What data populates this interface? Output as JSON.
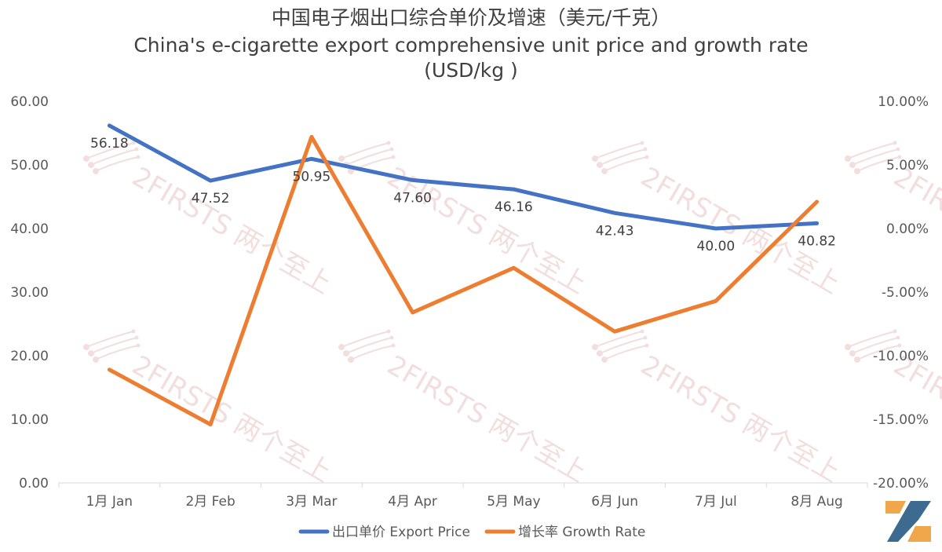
{
  "chart_data": {
    "type": "line",
    "title_lines": [
      "中国电子烟出口综合单价及增速（美元/千克）",
      "China's e-cigarette export comprehensive unit price and growth rate",
      "(USD/kg )"
    ],
    "categories": [
      "1月 Jan",
      "2月 Feb",
      "3月 Mar",
      "4月 Apr",
      "5月 May",
      "6月 Jun",
      "7月 Jul",
      "8月 Aug"
    ],
    "series": [
      {
        "name": "出口单价 Export Price",
        "axis": "left",
        "color": "#4472C4",
        "values": [
          56.18,
          47.52,
          50.95,
          47.6,
          46.16,
          42.43,
          40.0,
          40.82
        ],
        "data_labels": [
          "56.18",
          "47.52",
          "50.95",
          "47.60",
          "46.16",
          "42.43",
          "40.00",
          "40.82"
        ]
      },
      {
        "name": "增长率 Growth Rate",
        "axis": "right",
        "color": "#ED7D31",
        "values": [
          -11.1,
          -15.4,
          7.2,
          -6.6,
          -3.1,
          -8.1,
          -5.7,
          2.1
        ]
      }
    ],
    "y_left": {
      "min": 0,
      "max": 60,
      "step": 10,
      "tick_labels": [
        "0.00",
        "10.00",
        "20.00",
        "30.00",
        "40.00",
        "50.00",
        "60.00"
      ]
    },
    "y_right": {
      "min": -20,
      "max": 10,
      "step": 5,
      "tick_labels": [
        "-20.00%",
        "-15.00%",
        "-10.00%",
        "-5.00%",
        "0.00%",
        "5.00%",
        "10.00%"
      ]
    },
    "grid": false,
    "legend_position": "bottom",
    "watermark": "2FIRSTS 两个至上"
  }
}
